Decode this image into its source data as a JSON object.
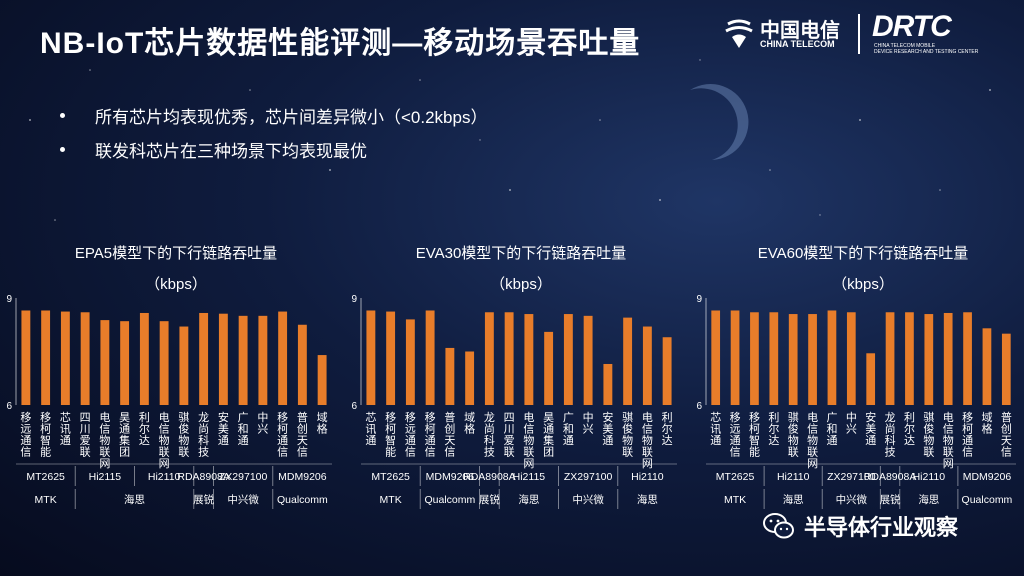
{
  "page": {
    "title": "NB-IoT芯片数据性能评测—移动场景吞吐量",
    "bullets": [
      "所有芯片均表现优秀，芯片间差异微小（<0.2kbps）",
      "联发科芯片在三种场景下均表现最优"
    ]
  },
  "logos": {
    "china_telecom_cn": "中国电信",
    "china_telecom_en": "CHINA TELECOM",
    "drtc_mark": "DRTC",
    "drtc_sub1": "CHINA TELECOM MOBILE",
    "drtc_sub2": "DEVICE RESEARCH AND TESTING CENTER"
  },
  "watermark": {
    "text": "半导体行业观察",
    "icon": "wechat-icon"
  },
  "colors": {
    "bar": "#e87d2a",
    "text": "#ffffff"
  },
  "chart_data": [
    {
      "type": "bar",
      "title": "EPA5模型下的下行链路吞吐量",
      "unit": "（kbps）",
      "ylim": [
        6,
        9
      ],
      "yticks": [
        6,
        9
      ],
      "categories": [
        "移远通信",
        "移柯智能",
        "芯讯通",
        "四川爱联",
        "电信物联网",
        "昊通集团",
        "利尔达",
        "电信物联网",
        "骐俊物联",
        "龙尚科技",
        "安美通",
        "广和通",
        "中兴",
        "移柯通信",
        "普创天信",
        "域格"
      ],
      "values": [
        8.65,
        8.65,
        8.62,
        8.6,
        8.38,
        8.35,
        8.58,
        8.35,
        8.2,
        8.58,
        8.56,
        8.5,
        8.5,
        8.62,
        8.25,
        7.4
      ],
      "chips": [
        {
          "label": "MT2625",
          "span": 3
        },
        {
          "label": "Hi2115",
          "span": 3
        },
        {
          "label": "Hi2110",
          "span": 3
        },
        {
          "label": "RDA8908A",
          "span": 1
        },
        {
          "label": "ZX297100",
          "span": 3
        },
        {
          "label": "MDM9206",
          "span": 3
        }
      ],
      "vendors": [
        {
          "label": "MTK",
          "span": 3
        },
        {
          "label": "海思",
          "span": 6
        },
        {
          "label": "展锐",
          "span": 1
        },
        {
          "label": "中兴微",
          "span": 3
        },
        {
          "label": "Qualcomm",
          "span": 3
        }
      ]
    },
    {
      "type": "bar",
      "title": "EVA30模型下的下行链路吞吐量",
      "unit": "（kbps）",
      "ylim": [
        6,
        9
      ],
      "yticks": [
        6,
        9
      ],
      "categories": [
        "芯讯通",
        "移柯智能",
        "移远通信",
        "移柯通信",
        "普创天信",
        "域格",
        "龙尚科技",
        "四川爱联",
        "电信物联网",
        "昊通集团",
        "广和通",
        "中兴",
        "安美通",
        "骐俊物联",
        "电信物联网",
        "利尔达"
      ],
      "values": [
        8.65,
        8.62,
        8.4,
        8.65,
        7.6,
        7.5,
        8.6,
        8.6,
        8.55,
        8.05,
        8.55,
        8.5,
        7.15,
        8.45,
        8.2,
        7.9
      ],
      "chips": [
        {
          "label": "MT2625",
          "span": 3
        },
        {
          "label": "MDM9206",
          "span": 3
        },
        {
          "label": "RDA8908A",
          "span": 1
        },
        {
          "label": "Hi2115",
          "span": 3
        },
        {
          "label": "ZX297100",
          "span": 3
        },
        {
          "label": "Hi2110",
          "span": 3
        }
      ],
      "vendors": [
        {
          "label": "MTK",
          "span": 3
        },
        {
          "label": "Qualcomm",
          "span": 3
        },
        {
          "label": "展锐",
          "span": 1
        },
        {
          "label": "海思",
          "span": 3
        },
        {
          "label": "中兴微",
          "span": 3
        },
        {
          "label": "海思",
          "span": 3
        }
      ]
    },
    {
      "type": "bar",
      "title": "EVA60模型下的下行链路吞吐量",
      "unit": "（kbps）",
      "ylim": [
        6,
        9
      ],
      "yticks": [
        6,
        9
      ],
      "categories": [
        "芯讯通",
        "移远通信",
        "移柯智能",
        "利尔达",
        "骐俊物联",
        "电信物联网",
        "广和通",
        "中兴",
        "安美通",
        "龙尚科技",
        "利尔达",
        "骐俊物联",
        "电信物联网",
        "移柯通信",
        "域格",
        "普创天信"
      ],
      "values": [
        8.65,
        8.65,
        8.6,
        8.6,
        8.55,
        8.55,
        8.65,
        8.6,
        7.45,
        8.6,
        8.6,
        8.55,
        8.58,
        8.6,
        8.15,
        8.0
      ],
      "chips": [
        {
          "label": "MT2625",
          "span": 3
        },
        {
          "label": "Hi2110",
          "span": 3
        },
        {
          "label": "ZX297100",
          "span": 3
        },
        {
          "label": "RDA8908A",
          "span": 1
        },
        {
          "label": "Hi2110",
          "span": 3
        },
        {
          "label": "MDM9206",
          "span": 3
        }
      ],
      "vendors": [
        {
          "label": "MTK",
          "span": 3
        },
        {
          "label": "海思",
          "span": 3
        },
        {
          "label": "中兴微",
          "span": 3
        },
        {
          "label": "展锐",
          "span": 1
        },
        {
          "label": "海思",
          "span": 3
        },
        {
          "label": "Qualcomm",
          "span": 3
        }
      ]
    }
  ]
}
